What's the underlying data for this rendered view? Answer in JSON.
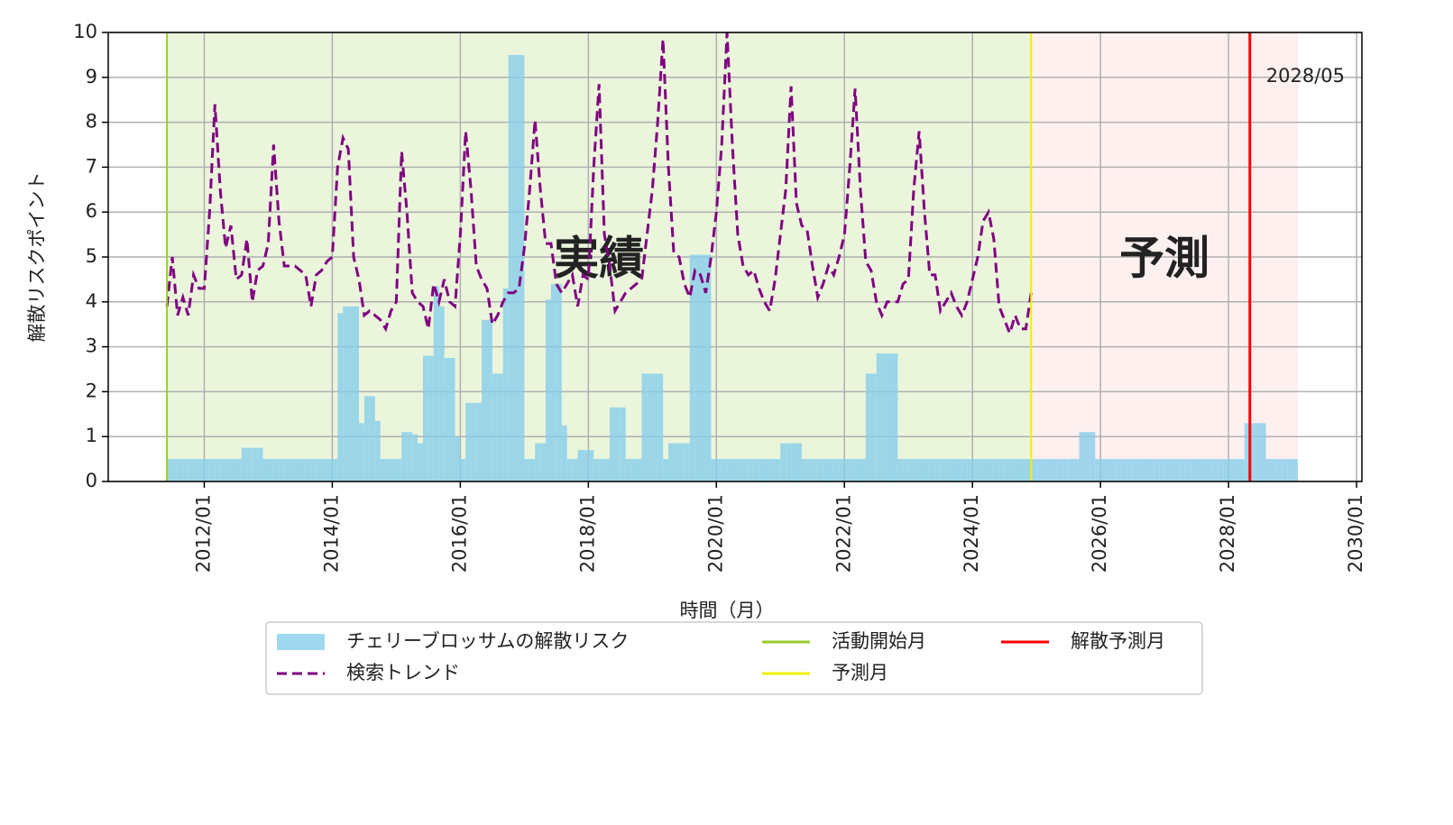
{
  "chart_data": {
    "type": "bar_line",
    "x_label": "時間（月）",
    "y_label": "解散リスクポイント",
    "xlim": [
      "2010/07",
      "2030/02"
    ],
    "xticks": [
      "2012/01",
      "2014/01",
      "2016/01",
      "2018/01",
      "2020/01",
      "2022/01",
      "2024/01",
      "2026/01",
      "2028/01",
      "2030/01"
    ],
    "ylim": [
      0,
      10
    ],
    "yticks": [
      0,
      1,
      2,
      3,
      4,
      5,
      6,
      7,
      8,
      9,
      10
    ],
    "grid": true,
    "legend": "below",
    "regions": [
      {
        "label": "実績",
        "from": "2011/06",
        "to": "2024/12",
        "color": "#eaf5dc",
        "label_color": "#5a9e2f"
      },
      {
        "label": "予測",
        "from": "2024/12",
        "to": "2029/02",
        "color": "#fff0f0",
        "label_color": "#ff0000"
      }
    ],
    "lines": [
      {
        "name": "活動開始月",
        "x": "2011/06",
        "color": "#9acd32"
      },
      {
        "name": "予測月",
        "x": "2024/12",
        "color": "#f0f000"
      },
      {
        "name": "解散予測月",
        "x": "2028/05",
        "color": "#ff0000"
      }
    ],
    "x": [
      "2011/06",
      "2011/07",
      "2011/08",
      "2011/09",
      "2011/10",
      "2011/11",
      "2011/12",
      "2012/01",
      "2012/02",
      "2012/03",
      "2012/04",
      "2012/05",
      "2012/06",
      "2012/07",
      "2012/08",
      "2012/09",
      "2012/10",
      "2012/11",
      "2012/12",
      "2013/01",
      "2013/02",
      "2013/03",
      "2013/04",
      "2013/05",
      "2013/06",
      "2013/07",
      "2013/08",
      "2013/09",
      "2013/10",
      "2013/11",
      "2013/12",
      "2014/01",
      "2014/02",
      "2014/03",
      "2014/04",
      "2014/05",
      "2014/06",
      "2014/07",
      "2014/08",
      "2014/09",
      "2014/10",
      "2014/11",
      "2014/12",
      "2015/01",
      "2015/02",
      "2015/03",
      "2015/04",
      "2015/05",
      "2015/06",
      "2015/07",
      "2015/08",
      "2015/09",
      "2015/10",
      "2015/11",
      "2015/12",
      "2016/01",
      "2016/02",
      "2016/03",
      "2016/04",
      "2016/05",
      "2016/06",
      "2016/07",
      "2016/08",
      "2016/09",
      "2016/10",
      "2016/11",
      "2016/12",
      "2017/01",
      "2017/02",
      "2017/03",
      "2017/04",
      "2017/05",
      "2017/06",
      "2017/07",
      "2017/08",
      "2017/09",
      "2017/10",
      "2017/11",
      "2017/12",
      "2018/01",
      "2018/02",
      "2018/03",
      "2018/04",
      "2018/05",
      "2018/06",
      "2018/07",
      "2018/08",
      "2018/09",
      "2018/10",
      "2018/11",
      "2018/12",
      "2019/01",
      "2019/02",
      "2019/03",
      "2019/04",
      "2019/05",
      "2019/06",
      "2019/07",
      "2019/08",
      "2019/09",
      "2019/10",
      "2019/11",
      "2019/12",
      "2020/01",
      "2020/02",
      "2020/03",
      "2020/04",
      "2020/05",
      "2020/06",
      "2020/07",
      "2020/08",
      "2020/09",
      "2020/10",
      "2020/11",
      "2020/12",
      "2021/01",
      "2021/02",
      "2021/03",
      "2021/04",
      "2021/05",
      "2021/06",
      "2021/07",
      "2021/08",
      "2021/09",
      "2021/10",
      "2021/11",
      "2021/12",
      "2022/01",
      "2022/02",
      "2022/03",
      "2022/04",
      "2022/05",
      "2022/06",
      "2022/07",
      "2022/08",
      "2022/09",
      "2022/10",
      "2022/11",
      "2022/12",
      "2023/01",
      "2023/02",
      "2023/03",
      "2023/04",
      "2023/05",
      "2023/06",
      "2023/07",
      "2023/08",
      "2023/09",
      "2023/10",
      "2023/11",
      "2023/12",
      "2024/01",
      "2024/02",
      "2024/03",
      "2024/04",
      "2024/05",
      "2024/06",
      "2024/07",
      "2024/08",
      "2024/09",
      "2024/10",
      "2024/11",
      "2024/12",
      "2025/01",
      "2025/02",
      "2025/03",
      "2025/04",
      "2025/05",
      "2025/06",
      "2025/07",
      "2025/08",
      "2025/09",
      "2025/10",
      "2025/11",
      "2025/12",
      "2026/01",
      "2026/02",
      "2026/03",
      "2026/04",
      "2026/05",
      "2026/06",
      "2026/07",
      "2026/08",
      "2026/09",
      "2026/10",
      "2026/11",
      "2026/12",
      "2027/01",
      "2027/02",
      "2027/03",
      "2027/04",
      "2027/05",
      "2027/06",
      "2027/07",
      "2027/08",
      "2027/09",
      "2027/10",
      "2027/11",
      "2027/12",
      "2028/01",
      "2028/02",
      "2028/03",
      "2028/04",
      "2028/05",
      "2028/06",
      "2028/07",
      "2028/08",
      "2028/09",
      "2028/10",
      "2028/11",
      "2028/12",
      "2029/01"
    ],
    "series": [
      {
        "name": "チェリーブロッサムの解散リスク",
        "kind": "bar",
        "color": "#87ceeb",
        "values": [
          0.5,
          0.5,
          0.5,
          0.5,
          0.5,
          0.5,
          0.5,
          0.5,
          0.5,
          0.5,
          0.5,
          0.5,
          0.5,
          0.5,
          0.75,
          0.75,
          0.75,
          0.75,
          0.5,
          0.5,
          0.5,
          0.5,
          0.5,
          0.5,
          0.5,
          0.5,
          0.5,
          0.5,
          0.5,
          0.5,
          0.5,
          0.5,
          3.75,
          3.9,
          3.9,
          3.9,
          1.3,
          1.9,
          1.9,
          1.35,
          0.5,
          0.5,
          0.5,
          0.5,
          1.1,
          1.1,
          1.05,
          0.85,
          2.8,
          2.8,
          4.35,
          3.9,
          2.75,
          2.75,
          1.0,
          0.5,
          1.75,
          1.75,
          1.75,
          3.6,
          3.6,
          2.4,
          2.4,
          4.3,
          9.5,
          9.5,
          9.5,
          0.5,
          0.5,
          0.85,
          0.85,
          4.05,
          4.4,
          4.4,
          1.25,
          0.5,
          0.5,
          0.7,
          0.7,
          0.7,
          0.5,
          0.5,
          0.5,
          1.65,
          1.65,
          1.65,
          0.5,
          0.5,
          0.5,
          2.4,
          2.4,
          2.4,
          2.4,
          0.5,
          0.85,
          0.85,
          0.85,
          0.85,
          5.05,
          5.05,
          5.05,
          5.05,
          0.5,
          0.5,
          0.5,
          0.5,
          0.5,
          0.5,
          0.5,
          0.5,
          0.5,
          0.5,
          0.5,
          0.5,
          0.5,
          0.85,
          0.85,
          0.85,
          0.85,
          0.5,
          0.5,
          0.5,
          0.5,
          0.5,
          0.5,
          0.5,
          0.5,
          0.5,
          0.5,
          0.5,
          0.5,
          2.4,
          2.4,
          2.85,
          2.85,
          2.85,
          2.85,
          0.5,
          0.5,
          0.5,
          0.5,
          0.5,
          0.5,
          0.5,
          0.5,
          0.5,
          0.5,
          0.5,
          0.5,
          0.5,
          0.5,
          0.5,
          0.5,
          0.5,
          0.5,
          0.5,
          0.5,
          0.5,
          0.5,
          0.5,
          0.5,
          0.5,
          0.5,
          0.5,
          0.5,
          0.5,
          0.5,
          0.5,
          0.5,
          0.5,
          0.5,
          1.1,
          1.1,
          1.1,
          0.5,
          0.5,
          0.5,
          0.5,
          0.5,
          0.5,
          0.5,
          0.5,
          0.5,
          0.5,
          0.5,
          0.5,
          0.5,
          0.5,
          0.5,
          0.5,
          0.5,
          0.5,
          0.5,
          0.5,
          0.5,
          0.5,
          0.5,
          0.5,
          0.5,
          0.5,
          0.5,
          0.5,
          1.3,
          1.3,
          1.3,
          1.3,
          0.5,
          0.5,
          0.5,
          0.5,
          0.5,
          0.5
        ]
      },
      {
        "name": "検索トレンド",
        "kind": "line",
        "dashed": true,
        "color": "#800080",
        "values": [
          3.9,
          5.0,
          3.7,
          4.1,
          3.7,
          4.6,
          4.3,
          4.3,
          6.0,
          8.4,
          6.5,
          5.2,
          5.7,
          4.5,
          4.6,
          5.4,
          4.0,
          4.7,
          4.8,
          5.3,
          7.5,
          5.8,
          4.8,
          4.8,
          4.8,
          4.7,
          4.6,
          3.9,
          4.6,
          4.7,
          4.9,
          5.0,
          7.0,
          7.65,
          7.4,
          5.0,
          4.5,
          3.7,
          3.8,
          3.7,
          3.6,
          3.4,
          3.8,
          4.0,
          7.35,
          6.0,
          4.2,
          4.0,
          3.9,
          3.4,
          4.4,
          4.0,
          4.5,
          4.0,
          3.9,
          5.5,
          7.8,
          6.5,
          4.8,
          4.5,
          4.3,
          3.5,
          3.7,
          4.0,
          4.2,
          4.2,
          4.3,
          5.2,
          6.5,
          8.05,
          6.5,
          5.3,
          5.3,
          4.4,
          4.2,
          4.4,
          4.6,
          3.9,
          4.6,
          4.5,
          7.0,
          8.85,
          5.5,
          4.8,
          3.8,
          4.0,
          4.2,
          4.3,
          4.4,
          4.5,
          5.5,
          6.5,
          8.0,
          9.85,
          7.0,
          5.1,
          5.0,
          4.4,
          4.1,
          4.7,
          4.6,
          4.2,
          5.0,
          6.0,
          7.5,
          10.0,
          7.5,
          5.5,
          4.8,
          4.6,
          4.7,
          4.3,
          4.0,
          3.8,
          4.5,
          5.5,
          6.5,
          8.8,
          6.2,
          5.7,
          5.6,
          4.8,
          4.1,
          4.4,
          4.8,
          4.6,
          5.0,
          5.5,
          7.0,
          8.75,
          6.5,
          4.9,
          4.7,
          4.0,
          3.7,
          4.0,
          4.0,
          4.0,
          4.4,
          4.5,
          6.5,
          7.8,
          6.0,
          4.6,
          4.6,
          3.8,
          4.0,
          4.2,
          3.9,
          3.7,
          4.0,
          4.5,
          5.0,
          5.8,
          6.0,
          5.4,
          3.9,
          3.6,
          3.3,
          3.7,
          3.4,
          3.4,
          4.2,
          null,
          null,
          null,
          null,
          null,
          null,
          null,
          null,
          null,
          null,
          null,
          null,
          null,
          null,
          null,
          null,
          null,
          null,
          null,
          null,
          null,
          null,
          null,
          null,
          null,
          null,
          null,
          null,
          null,
          null,
          null,
          null,
          null,
          null,
          null,
          null,
          null,
          null,
          null,
          null,
          null,
          null,
          null,
          null,
          null,
          null,
          null,
          null,
          null
        ]
      }
    ]
  }
}
